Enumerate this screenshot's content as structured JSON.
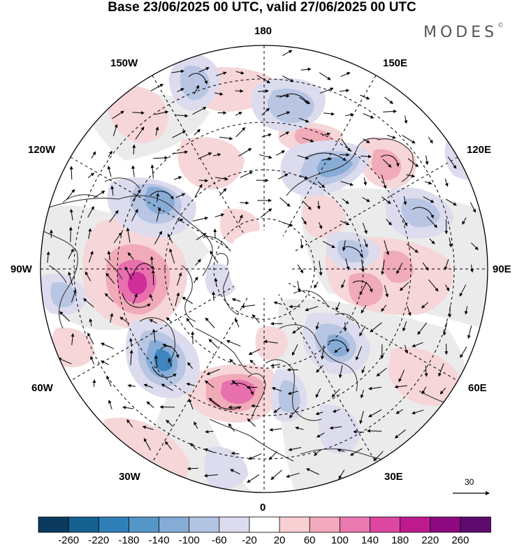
{
  "title": "Base 23/06/2025 00 UTC, valid 27/06/2025 00 UTC",
  "brand": "MODES",
  "brand_mark": "©",
  "longitude_labels": {
    "top": "180",
    "bottom": "0",
    "left": "90W",
    "right": "90E",
    "upper_left_1": "150W",
    "upper_left_2": "120W",
    "upper_right_1": "150E",
    "upper_right_2": "120E",
    "lower_left_1": "60W",
    "lower_left_2": "30W",
    "lower_right_1": "60E",
    "lower_right_2": "30E"
  },
  "reference_vector": {
    "value": "30"
  },
  "colorbar": {
    "labels": [
      "-260",
      "-220",
      "-180",
      "-140",
      "-100",
      "-60",
      "-20",
      "20",
      "60",
      "100",
      "140",
      "180",
      "220",
      "260"
    ],
    "colors": [
      "#0b3a5e",
      "#16608f",
      "#2f7fb8",
      "#5596c8",
      "#86acd6",
      "#b3c3e2",
      "#dcdcef",
      "#ffffff",
      "#f8cfd2",
      "#f3a9bd",
      "#ea79b0",
      "#dd47a1",
      "#be1a8e",
      "#8e0a80",
      "#5d0b6d"
    ]
  },
  "features": {
    "anomaly_colors": {
      "weak_pos": "#f6d6d8",
      "mod_pos": "#f0aab8",
      "strong_pos": "#e870ae",
      "vstrong_pos": "#cf2d9a",
      "weak_neg": "#dcdcee",
      "mod_neg": "#b8c6e3",
      "strong_neg": "#87acd6",
      "vstrong_neg": "#3f86c0",
      "neutral": "#ebebeb"
    }
  }
}
